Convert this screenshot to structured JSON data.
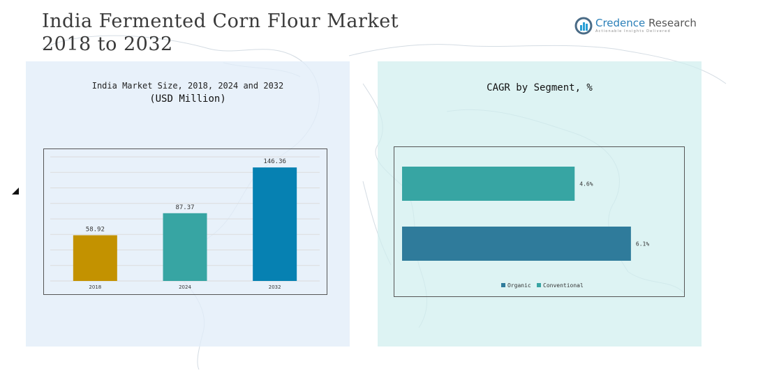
{
  "header": {
    "title_line1": "India Fermented Corn Flour Market",
    "title_line2": "2018 to 2032"
  },
  "logo": {
    "brand": "Credence",
    "brand_rest": " Research",
    "tagline": "Actionable Insights Delivered"
  },
  "chart_data": [
    {
      "type": "bar",
      "title": "India Market Size, 2018, 2024 and 2032",
      "subtitle": "(USD Million)",
      "categories": [
        "2018",
        "2024",
        "2032"
      ],
      "values": [
        58.92,
        87.37,
        146.36
      ],
      "value_labels": [
        "58.92",
        "87.37",
        "146.36"
      ],
      "colors": [
        "#c39200",
        "#37a5a3",
        "#0681b2"
      ],
      "ylim": [
        0,
        160
      ],
      "grid": true
    },
    {
      "type": "bar",
      "orientation": "horizontal",
      "title": "CAGR by Segment, %",
      "categories": [
        "Conventional",
        "Organic"
      ],
      "values": [
        4.6,
        6.1
      ],
      "value_labels": [
        "4.6%",
        "6.1%"
      ],
      "colors": [
        "#37a5a3",
        "#2f7b9b"
      ],
      "xlim": [
        0,
        6.4
      ],
      "legend": [
        {
          "label": "Organic",
          "color": "#2f7b9b"
        },
        {
          "label": "Conventional",
          "color": "#37a5a3"
        }
      ],
      "legend_position": "bottom"
    }
  ]
}
